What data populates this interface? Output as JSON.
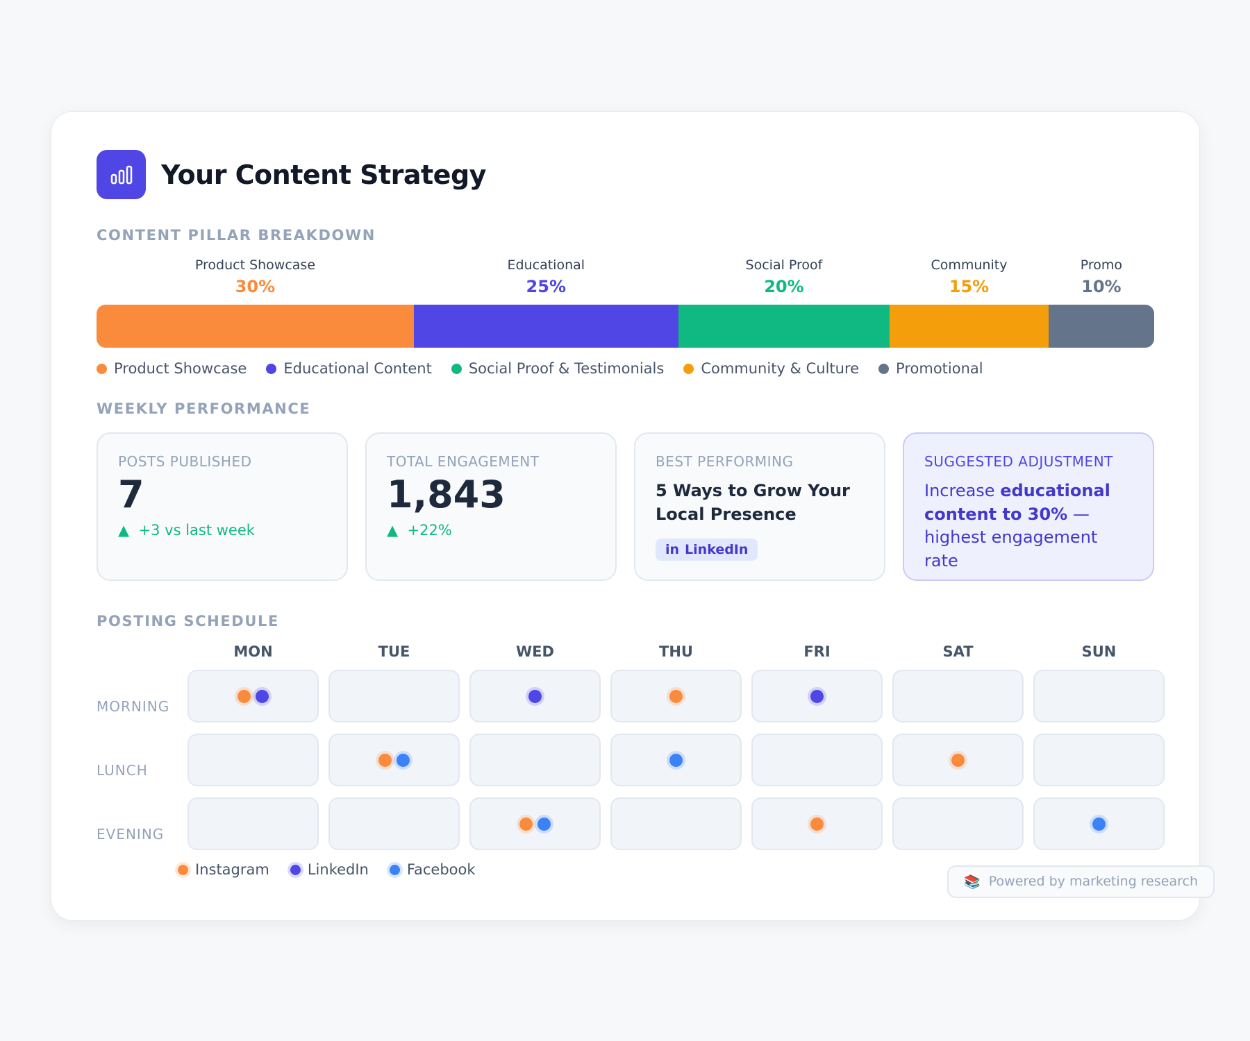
{
  "header": {
    "title": "Your Content Strategy"
  },
  "pillars": {
    "heading": "CONTENT PILLAR BREAKDOWN",
    "items": [
      {
        "label": "Product Showcase",
        "value": 30,
        "value_label": "30%",
        "legend": "Product Showcase",
        "color": "#fb8b3c"
      },
      {
        "label": "Educational",
        "value": 25,
        "value_label": "25%",
        "legend": "Educational Content",
        "color": "#4f46e5"
      },
      {
        "label": "Social Proof",
        "value": 20,
        "value_label": "20%",
        "legend": "Social Proof & Testimonials",
        "color": "#10b981"
      },
      {
        "label": "Community",
        "value": 15,
        "value_label": "15%",
        "legend": "Community & Culture",
        "color": "#f59e0b"
      },
      {
        "label": "Promo",
        "value": 10,
        "value_label": "10%",
        "legend": "Promotional",
        "color": "#64748b"
      }
    ]
  },
  "performance": {
    "heading": "WEEKLY PERFORMANCE",
    "posts": {
      "label": "POSTS PUBLISHED",
      "value": "7",
      "change": "+3 vs last week"
    },
    "engagement": {
      "label": "TOTAL ENGAGEMENT",
      "value": "1,843",
      "change": "+22%"
    },
    "best": {
      "label": "BEST PERFORMING",
      "title": "5 Ways to Grow Your Local Presence",
      "platform_icon": "in",
      "platform": "LinkedIn"
    },
    "suggestion": {
      "label": "SUGGESTED ADJUSTMENT",
      "parts": [
        "Increase ",
        "educational content to 30%",
        " — highest engagement rate"
      ]
    },
    "change_icon": "▲"
  },
  "schedule": {
    "heading": "POSTING SCHEDULE",
    "days": [
      "MON",
      "TUE",
      "WED",
      "THU",
      "FRI",
      "SAT",
      "SUN"
    ],
    "platforms": [
      {
        "name": "Instagram",
        "color": "#fb8b3c"
      },
      {
        "name": "LinkedIn",
        "color": "#4f46e5"
      },
      {
        "name": "Facebook",
        "color": "#3b82f6"
      }
    ],
    "rows": [
      {
        "slot": "MORNING",
        "cells": [
          [
            "Instagram",
            "LinkedIn"
          ],
          [],
          [
            "LinkedIn"
          ],
          [
            "Instagram"
          ],
          [
            "LinkedIn"
          ],
          [],
          []
        ]
      },
      {
        "slot": "LUNCH",
        "cells": [
          [],
          [
            "Instagram",
            "Facebook"
          ],
          [],
          [
            "Facebook"
          ],
          [],
          [
            "Instagram"
          ],
          []
        ]
      },
      {
        "slot": "EVENING",
        "cells": [
          [],
          [],
          [
            "Instagram",
            "Facebook"
          ],
          [],
          [
            "Instagram"
          ],
          [],
          [
            "Facebook"
          ]
        ]
      }
    ]
  },
  "footer": {
    "icon": "📚",
    "text": "Powered by marketing research"
  }
}
